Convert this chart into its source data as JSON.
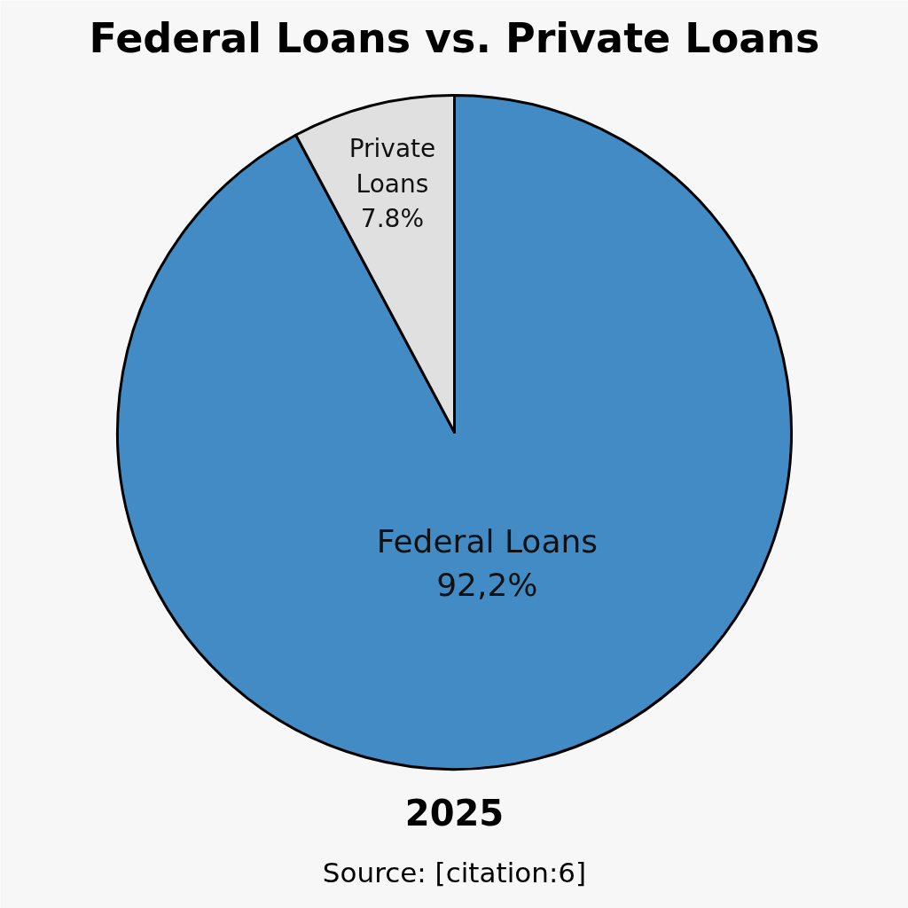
{
  "chart_data": {
    "type": "pie",
    "title": "Federal Loans vs. Private Loans",
    "categories": [
      "Federal Loans",
      "Private Loans"
    ],
    "values": [
      92.2,
      7.8
    ],
    "value_labels": [
      "92,2%",
      "7.8%"
    ],
    "colors": [
      "#428bc4",
      "#e0e0e0"
    ],
    "annotations": [
      "2025",
      "Source: [citation:6]"
    ]
  }
}
